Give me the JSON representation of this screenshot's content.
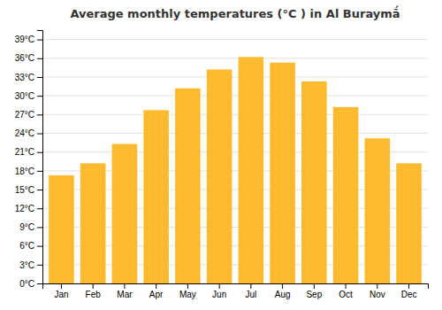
{
  "chart_data": {
    "type": "bar",
    "title": "Average monthly temperatures (°C ) in Al Buraymā́",
    "categories": [
      "Jan",
      "Feb",
      "Mar",
      "Apr",
      "May",
      "Jun",
      "Jul",
      "Aug",
      "Sep",
      "Oct",
      "Nov",
      "Dec"
    ],
    "values": [
      17.3,
      19.2,
      22.3,
      27.7,
      31.2,
      34.2,
      36.2,
      35.3,
      32.3,
      28.2,
      23.2,
      19.2
    ],
    "color": "#FDBA2E",
    "ylim": [
      0,
      40.5
    ],
    "yticks": [
      {
        "value": 0,
        "label": "0°C"
      },
      {
        "value": 3,
        "label": "3°C"
      },
      {
        "value": 6,
        "label": "6°C"
      },
      {
        "value": 9,
        "label": "9°C"
      },
      {
        "value": 12,
        "label": "12°C"
      },
      {
        "value": 15,
        "label": "15°C"
      },
      {
        "value": 18,
        "label": "18°C"
      },
      {
        "value": 21,
        "label": "21°C"
      },
      {
        "value": 24,
        "label": "24°C"
      },
      {
        "value": 27,
        "label": "27°C"
      },
      {
        "value": 30,
        "label": "30°C"
      },
      {
        "value": 33,
        "label": "33°C"
      },
      {
        "value": 36,
        "label": "36°C"
      },
      {
        "value": 39,
        "label": "39°C"
      }
    ],
    "grid": true
  }
}
